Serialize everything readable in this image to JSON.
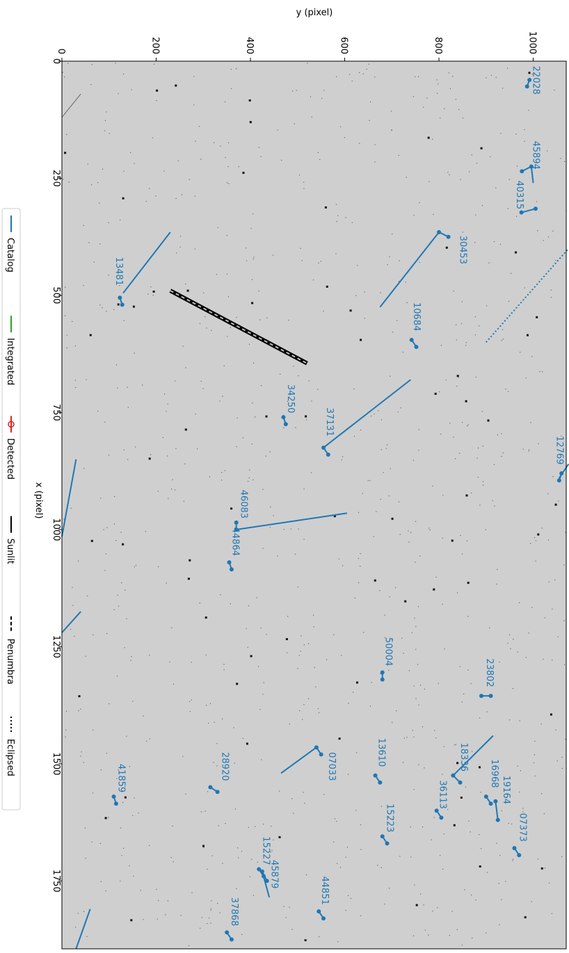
{
  "chart_data": {
    "type": "scatter",
    "xlabel": "x (pixel)",
    "ylabel": "y (pixel)",
    "xlim": [
      0,
      1895
    ],
    "ylim": [
      0,
      1070
    ],
    "x_ticks": [
      "0",
      "250",
      "500",
      "750",
      "1000",
      "1250",
      "1500",
      "1750"
    ],
    "y_ticks": [
      "0",
      "200",
      "400",
      "600",
      "800",
      "1000"
    ],
    "legend": {
      "placement": "left",
      "entries": [
        {
          "label": "Catalog",
          "color": "#1f77b4",
          "style": "solid"
        },
        {
          "label": "Integrated",
          "color": "#2ca02c",
          "style": "solid"
        },
        {
          "label": "Detected",
          "color": "#d62728",
          "style": "marker"
        },
        {
          "label": "Sunlit",
          "color": "#000000",
          "style": "solid"
        },
        {
          "label": "Penumbra",
          "color": "#000000",
          "style": "dashed"
        },
        {
          "label": "Eclipsed",
          "color": "#000000",
          "style": "dotted"
        }
      ]
    },
    "satellites": [
      {
        "id": "22028",
        "x": 40,
        "y": 992,
        "dx": 14,
        "dy": -5,
        "lx": 10,
        "ly": 1000
      },
      {
        "id": "45894",
        "x": 225,
        "y": 996,
        "dx": 10,
        "dy": -20,
        "lx": 170,
        "ly": 1000
      },
      {
        "id": "40315",
        "x": 315,
        "y": 1005,
        "dx": 8,
        "dy": -30,
        "lx": 255,
        "ly": 965
      },
      {
        "id": "30453",
        "x": 365,
        "y": 800,
        "dx": 10,
        "dy": 20,
        "lx": 372,
        "ly": 845
      },
      {
        "id": "13481",
        "x": 505,
        "y": 123,
        "dx": 15,
        "dy": 5,
        "lx": 418,
        "ly": 115
      },
      {
        "id": "10684",
        "x": 595,
        "y": 742,
        "dx": 15,
        "dy": 10,
        "lx": 515,
        "ly": 747
      },
      {
        "id": "34250",
        "x": 760,
        "y": 470,
        "dx": 15,
        "dy": 5,
        "lx": 690,
        "ly": 480
      },
      {
        "id": "37131",
        "x": 825,
        "y": 555,
        "dx": 15,
        "dy": 10,
        "lx": 740,
        "ly": 562
      },
      {
        "id": "12769",
        "x": 880,
        "y": 1060,
        "dx": 15,
        "dy": -5,
        "lx": 800,
        "ly": 1050
      },
      {
        "id": "46083",
        "x": 1000,
        "y": 370,
        "dx": -15,
        "dy": 0,
        "lx": 915,
        "ly": 380
      },
      {
        "id": "44864",
        "x": 1070,
        "y": 355,
        "dx": 15,
        "dy": 5,
        "lx": 995,
        "ly": 362
      },
      {
        "id": "50004",
        "x": 1320,
        "y": 680,
        "dx": -15,
        "dy": 0,
        "lx": 1230,
        "ly": 687
      },
      {
        "id": "23802",
        "x": 1355,
        "y": 890,
        "dx": 0,
        "dy": 20,
        "lx": 1275,
        "ly": 902
      },
      {
        "id": "07033",
        "x": 1465,
        "y": 540,
        "dx": 15,
        "dy": 10,
        "lx": 1475,
        "ly": 567
      },
      {
        "id": "13610",
        "x": 1525,
        "y": 665,
        "dx": 15,
        "dy": 10,
        "lx": 1445,
        "ly": 672
      },
      {
        "id": "18336",
        "x": 1525,
        "y": 830,
        "dx": 15,
        "dy": 15,
        "lx": 1455,
        "ly": 847
      },
      {
        "id": "28920",
        "x": 1560,
        "y": 330,
        "dx": -10,
        "dy": -15,
        "lx": 1475,
        "ly": 340
      },
      {
        "id": "16968",
        "x": 1570,
        "y": 900,
        "dx": 15,
        "dy": 10,
        "lx": 1490,
        "ly": 912
      },
      {
        "id": "19164",
        "x": 1580,
        "y": 920,
        "dx": 40,
        "dy": 5,
        "lx": 1525,
        "ly": 937
      },
      {
        "id": "41859",
        "x": 1570,
        "y": 110,
        "dx": 15,
        "dy": 5,
        "lx": 1500,
        "ly": 120
      },
      {
        "id": "36113",
        "x": 1600,
        "y": 795,
        "dx": 15,
        "dy": 10,
        "lx": 1535,
        "ly": 802
      },
      {
        "id": "15223",
        "x": 1655,
        "y": 680,
        "dx": 15,
        "dy": 10,
        "lx": 1585,
        "ly": 690
      },
      {
        "id": "07373",
        "x": 1680,
        "y": 960,
        "dx": 15,
        "dy": 10,
        "lx": 1605,
        "ly": 972
      },
      {
        "id": "15227",
        "x": 1725,
        "y": 418,
        "dx": 15,
        "dy": 10,
        "lx": 1655,
        "ly": 427
      },
      {
        "id": "45879",
        "x": 1730,
        "y": 425,
        "dx": 20,
        "dy": 10,
        "lx": 1705,
        "ly": 445
      },
      {
        "id": "44851",
        "x": 1815,
        "y": 545,
        "dx": 15,
        "dy": 10,
        "lx": 1740,
        "ly": 552
      },
      {
        "id": "37868",
        "x": 1860,
        "y": 350,
        "dx": 15,
        "dy": 10,
        "lx": 1785,
        "ly": 360
      }
    ],
    "long_tracks": [
      {
        "x1": 495,
        "y1": 130,
        "x2": 365,
        "y2": 230
      },
      {
        "x1": 525,
        "y1": 675,
        "x2": 365,
        "y2": 800
      },
      {
        "x1": 825,
        "y1": 555,
        "x2": 680,
        "y2": 740
      },
      {
        "x1": 1000,
        "y1": 370,
        "x2": 965,
        "y2": 605
      },
      {
        "x1": 1520,
        "y1": 465,
        "x2": 1465,
        "y2": 540
      },
      {
        "x1": 1525,
        "y1": 830,
        "x2": 1440,
        "y2": 915
      },
      {
        "x1": 1730,
        "y1": 425,
        "x2": 1785,
        "y2": 440
      },
      {
        "x1": 260,
        "y1": 1000,
        "x2": 225,
        "y2": 996
      },
      {
        "x1": 850,
        "y1": 30,
        "x2": 1015,
        "y2": 0
      },
      {
        "x1": 1175,
        "y1": 40,
        "x2": 1220,
        "y2": 0
      },
      {
        "x1": 1810,
        "y1": 60,
        "x2": 1895,
        "y2": 30
      },
      {
        "x1": 890,
        "y1": 1055,
        "x2": 860,
        "y2": 1075
      }
    ],
    "eclipsed_track": {
      "x1": 600,
      "y1": 900,
      "x2": 400,
      "y2": 1075
    },
    "sunlit_track": {
      "x1": 490,
      "y1": 230,
      "x2": 645,
      "y2": 520
    }
  }
}
